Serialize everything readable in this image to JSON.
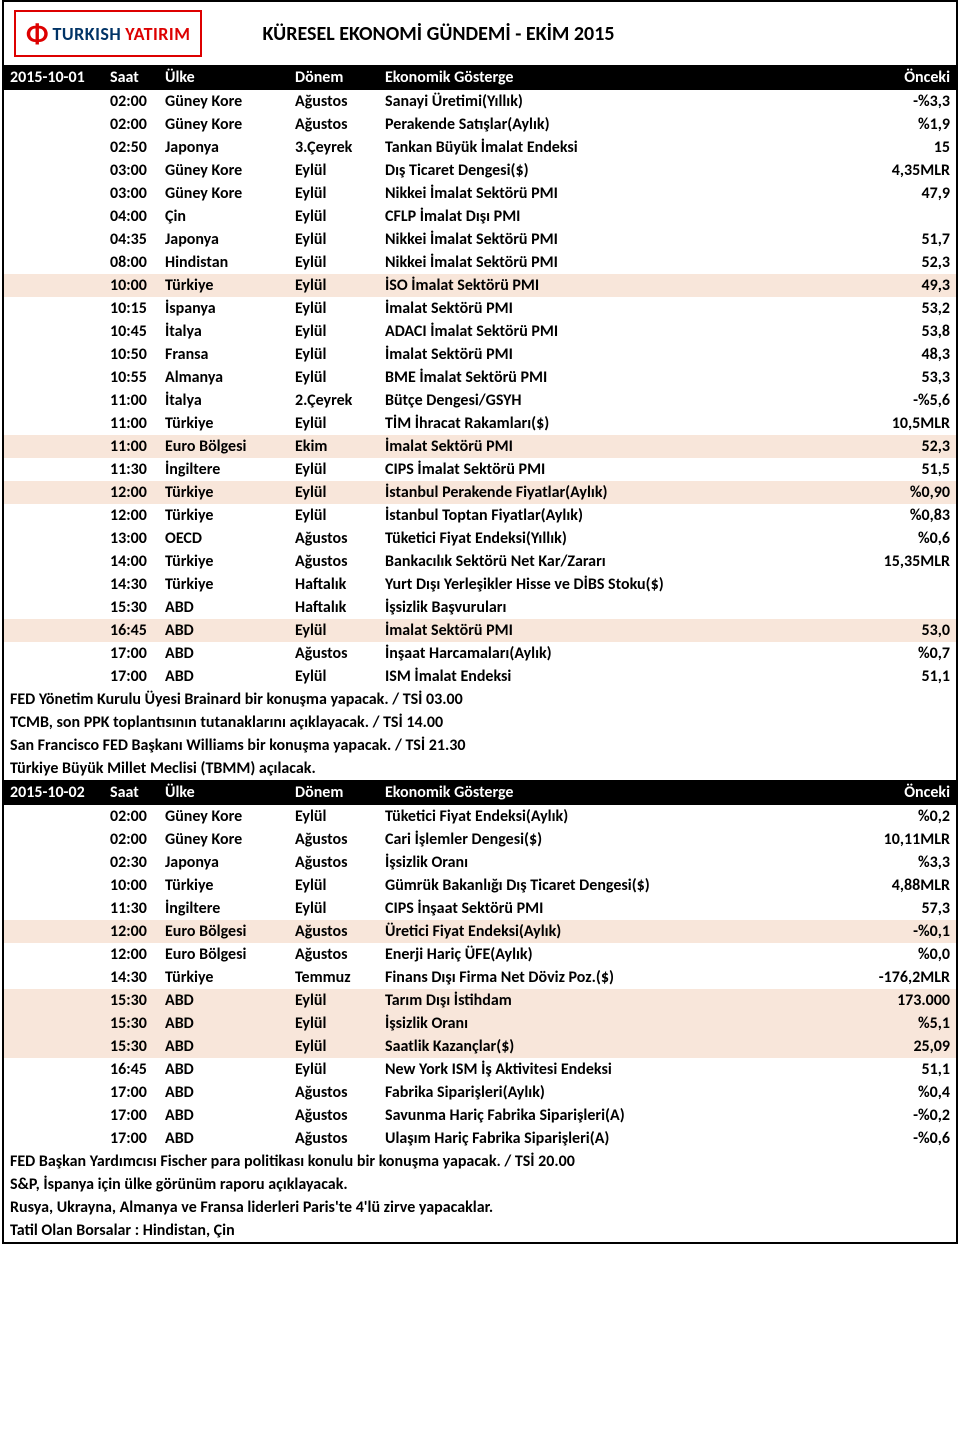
{
  "header": {
    "logo_icon": "Φ",
    "logo_text1": "TURKISH",
    "logo_text2": "YATIRIM",
    "title": "KÜRESEL EKONOMİ GÜNDEMİ - EKİM 2015"
  },
  "columns": {
    "date": "",
    "time": "Saat",
    "country": "Ülke",
    "period": "Dönem",
    "indicator": "Ekonomik Gösterge",
    "prev": "Önceki"
  },
  "sections": [
    {
      "date": "2015-10-01",
      "rows": [
        {
          "time": "02:00",
          "country": "Güney Kore",
          "period": "Ağustos",
          "indicator": "Sanayi Üretimi(Yıllık)",
          "prev": "-%3,3",
          "hl": false
        },
        {
          "time": "02:00",
          "country": "Güney Kore",
          "period": "Ağustos",
          "indicator": "Perakende Satışlar(Aylık)",
          "prev": "%1,9",
          "hl": false
        },
        {
          "time": "02:50",
          "country": "Japonya",
          "period": "3.Çeyrek",
          "indicator": "Tankan Büyük İmalat Endeksi",
          "prev": "15",
          "hl": false
        },
        {
          "time": "03:00",
          "country": "Güney Kore",
          "period": "Eylül",
          "indicator": "Dış Ticaret Dengesi($)",
          "prev": "4,35MLR",
          "hl": false
        },
        {
          "time": "03:00",
          "country": "Güney Kore",
          "period": "Eylül",
          "indicator": "Nikkei İmalat Sektörü PMI",
          "prev": "47,9",
          "hl": false
        },
        {
          "time": "04:00",
          "country": "Çin",
          "period": "Eylül",
          "indicator": "CFLP İmalat Dışı PMI",
          "prev": "",
          "hl": false
        },
        {
          "time": "04:35",
          "country": "Japonya",
          "period": "Eylül",
          "indicator": "Nikkei İmalat Sektörü PMI",
          "prev": "51,7",
          "hl": false
        },
        {
          "time": "08:00",
          "country": "Hindistan",
          "period": "Eylül",
          "indicator": "Nikkei İmalat Sektörü PMI",
          "prev": "52,3",
          "hl": false
        },
        {
          "time": "10:00",
          "country": "Türkiye",
          "period": "Eylül",
          "indicator": "İSO İmalat Sektörü PMI",
          "prev": "49,3",
          "hl": true
        },
        {
          "time": "10:15",
          "country": "İspanya",
          "period": "Eylül",
          "indicator": "İmalat Sektörü PMI",
          "prev": "53,2",
          "hl": false
        },
        {
          "time": "10:45",
          "country": "İtalya",
          "period": "Eylül",
          "indicator": "ADACI İmalat Sektörü PMI",
          "prev": "53,8",
          "hl": false
        },
        {
          "time": "10:50",
          "country": "Fransa",
          "period": "Eylül",
          "indicator": "İmalat Sektörü PMI",
          "prev": "48,3",
          "hl": false
        },
        {
          "time": "10:55",
          "country": "Almanya",
          "period": "Eylül",
          "indicator": "BME İmalat Sektörü PMI",
          "prev": "53,3",
          "hl": false
        },
        {
          "time": "11:00",
          "country": "İtalya",
          "period": "2.Çeyrek",
          "indicator": "Bütçe Dengesi/GSYH",
          "prev": "-%5,6",
          "hl": false
        },
        {
          "time": "11:00",
          "country": "Türkiye",
          "period": "Eylül",
          "indicator": "TİM İhracat Rakamları($)",
          "prev": "10,5MLR",
          "hl": false
        },
        {
          "time": "11:00",
          "country": "Euro Bölgesi",
          "period": "Ekim",
          "indicator": "İmalat Sektörü PMI",
          "prev": "52,3",
          "hl": true
        },
        {
          "time": "11:30",
          "country": "İngiltere",
          "period": "Eylül",
          "indicator": "CIPS İmalat Sektörü PMI",
          "prev": "51,5",
          "hl": false
        },
        {
          "time": "12:00",
          "country": "Türkiye",
          "period": "Eylül",
          "indicator": "İstanbul Perakende Fiyatlar(Aylık)",
          "prev": "%0,90",
          "hl": true
        },
        {
          "time": "12:00",
          "country": "Türkiye",
          "period": "Eylül",
          "indicator": "İstanbul Toptan Fiyatlar(Aylık)",
          "prev": "%0,83",
          "hl": false
        },
        {
          "time": "13:00",
          "country": "OECD",
          "period": "Ağustos",
          "indicator": "Tüketici Fiyat Endeksi(Yıllık)",
          "prev": "%0,6",
          "hl": false
        },
        {
          "time": "14:00",
          "country": "Türkiye",
          "period": "Ağustos",
          "indicator": "Bankacılık Sektörü Net Kar/Zararı",
          "prev": "15,35MLR",
          "hl": false
        },
        {
          "time": "14:30",
          "country": "Türkiye",
          "period": "Haftalık",
          "indicator": "Yurt Dışı Yerleşikler Hisse ve DİBS Stoku($)",
          "prev": "",
          "hl": false
        },
        {
          "time": "15:30",
          "country": "ABD",
          "period": "Haftalık",
          "indicator": "İşsizlik Başvuruları",
          "prev": "",
          "hl": false
        },
        {
          "time": "16:45",
          "country": "ABD",
          "period": "Eylül",
          "indicator": "İmalat Sektörü PMI",
          "prev": "53,0",
          "hl": true
        },
        {
          "time": "17:00",
          "country": "ABD",
          "period": "Ağustos",
          "indicator": "İnşaat Harcamaları(Aylık)",
          "prev": "%0,7",
          "hl": false
        },
        {
          "time": "17:00",
          "country": "ABD",
          "period": "Eylül",
          "indicator": "ISM İmalat Endeksi",
          "prev": "51,1",
          "hl": false
        }
      ],
      "notes": [
        "FED Yönetim Kurulu Üyesi Brainard bir konuşma yapacak. / TSİ 03.00",
        "TCMB, son PPK toplantısının tutanaklarını açıklayacak. / TSİ 14.00",
        "San Francisco FED Başkanı Williams bir konuşma yapacak. / TSİ 21.30",
        "Türkiye Büyük Millet Meclisi (TBMM) açılacak."
      ]
    },
    {
      "date": "2015-10-02",
      "rows": [
        {
          "time": "02:00",
          "country": "Güney Kore",
          "period": "Eylül",
          "indicator": "Tüketici Fiyat Endeksi(Aylık)",
          "prev": "%0,2",
          "hl": false
        },
        {
          "time": "02:00",
          "country": "Güney Kore",
          "period": "Ağustos",
          "indicator": "Cari İşlemler Dengesi($)",
          "prev": "10,11MLR",
          "hl": false
        },
        {
          "time": "02:30",
          "country": "Japonya",
          "period": "Ağustos",
          "indicator": "İşsizlik Oranı",
          "prev": "%3,3",
          "hl": false
        },
        {
          "time": "10:00",
          "country": "Türkiye",
          "period": "Eylül",
          "indicator": "Gümrük Bakanlığı Dış Ticaret Dengesi($)",
          "prev": "4,88MLR",
          "hl": false
        },
        {
          "time": "11:30",
          "country": "İngiltere",
          "period": "Eylül",
          "indicator": "CIPS İnşaat Sektörü PMI",
          "prev": "57,3",
          "hl": false
        },
        {
          "time": "12:00",
          "country": "Euro Bölgesi",
          "period": "Ağustos",
          "indicator": "Üretici Fiyat Endeksi(Aylık)",
          "prev": "-%0,1",
          "hl": true
        },
        {
          "time": "12:00",
          "country": "Euro Bölgesi",
          "period": "Ağustos",
          "indicator": "Enerji Hariç ÜFE(Aylık)",
          "prev": "%0,0",
          "hl": false
        },
        {
          "time": "14:30",
          "country": "Türkiye",
          "period": "Temmuz",
          "indicator": "Finans Dışı Firma Net Döviz Poz.($)",
          "prev": "-176,2MLR",
          "hl": false
        },
        {
          "time": "15:30",
          "country": "ABD",
          "period": "Eylül",
          "indicator": "Tarım Dışı İstihdam",
          "prev": "173.000",
          "hl": true
        },
        {
          "time": "15:30",
          "country": "ABD",
          "period": "Eylül",
          "indicator": "İşsizlik Oranı",
          "prev": "%5,1",
          "hl": true
        },
        {
          "time": "15:30",
          "country": "ABD",
          "period": "Eylül",
          "indicator": "Saatlik Kazançlar($)",
          "prev": "25,09",
          "hl": true
        },
        {
          "time": "16:45",
          "country": "ABD",
          "period": "Eylül",
          "indicator": "New York ISM İş Aktivitesi Endeksi",
          "prev": "51,1",
          "hl": false
        },
        {
          "time": "17:00",
          "country": "ABD",
          "period": "Ağustos",
          "indicator": "Fabrika Siparişleri(Aylık)",
          "prev": "%0,4",
          "hl": false
        },
        {
          "time": "17:00",
          "country": "ABD",
          "period": "Ağustos",
          "indicator": "Savunma Hariç Fabrika Siparişleri(A)",
          "prev": "-%0,2",
          "hl": false
        },
        {
          "time": "17:00",
          "country": "ABD",
          "period": "Ağustos",
          "indicator": "Ulaşım Hariç Fabrika Siparişleri(A)",
          "prev": "-%0,6",
          "hl": false
        }
      ],
      "notes": [
        "FED Başkan Yardımcısı Fischer para politikası konulu bir konuşma yapacak. / TSİ 20.00",
        "S&P, İspanya için ülke görünüm raporu açıklayacak.",
        "Rusya, Ukrayna, Almanya ve Fransa liderleri Paris'te 4'lü zirve yapacaklar.",
        "Tatil Olan Borsalar : Hindistan, Çin"
      ]
    }
  ]
}
